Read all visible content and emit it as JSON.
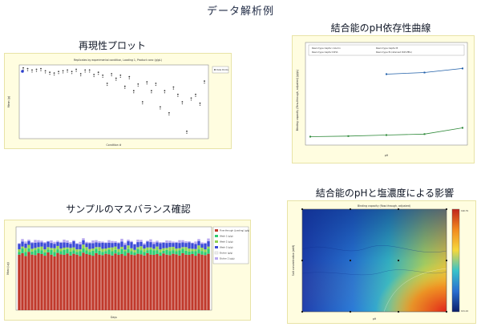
{
  "page": {
    "title": "データ解析例"
  },
  "panels": [
    {
      "title": "再現性プロット",
      "chart_title": "Replicates by experimental condition, Loading 1, Product conc (g/gL)",
      "ylabel": "Mean (g)",
      "xlabel": "Condition #",
      "legend": [
        "Data Points"
      ]
    },
    {
      "title": "結合能のpH依存性曲線",
      "ylabel": "Binding capacity (flow-through, adjusted) (g/gL)",
      "xlabel": "pH",
      "legend": [
        "Resin type Captiv column",
        "Resin type Captiv B",
        "Resin type Captiv DiHA",
        "Resin type B (retained PoE-PEG)"
      ]
    },
    {
      "title": "サンプルのマスバランス確認",
      "ylabel": "Mass (ug)",
      "xlabel": "Days",
      "legend": [
        "Flow-through (Loading) (g/g)",
        "Wash 1 (g/g)",
        "Wash 2 (g/g)",
        "Wash 3 (g/g)",
        "Elution (g/g)",
        "Elution 2 (g/g)"
      ]
    },
    {
      "title": "結合能のpHと塩濃度による影響",
      "chart_title": "Binding capacity (flow-through, adjusted)",
      "ylabel": "Salt concentration (mM)",
      "xlabel": "pH",
      "colorbar_top": "190.79",
      "colorbar_bottom": "101.24"
    }
  ],
  "chart_data": [
    {
      "type": "scatter",
      "x_label": "Condition #",
      "y_label": "Mean (g)",
      "ylim": [
        0,
        200
      ],
      "series": [
        {
          "name": "Data Points",
          "points": [
            [
              1,
              192
            ],
            [
              2,
              190
            ],
            [
              3,
              186
            ],
            [
              4,
              188
            ],
            [
              5,
              190
            ],
            [
              6,
              184
            ],
            [
              7,
              180
            ],
            [
              8,
              178
            ],
            [
              9,
              182
            ],
            [
              10,
              184
            ],
            [
              11,
              186
            ],
            [
              12,
              182
            ],
            [
              13,
              188
            ],
            [
              14,
              176
            ],
            [
              15,
              186
            ],
            [
              16,
              186
            ],
            [
              17,
              174
            ],
            [
              18,
              180
            ],
            [
              19,
              172
            ],
            [
              20,
              150
            ],
            [
              21,
              176
            ],
            [
              22,
              164
            ],
            [
              23,
              172
            ],
            [
              24,
              142
            ],
            [
              25,
              168
            ],
            [
              26,
              130
            ],
            [
              27,
              148
            ],
            [
              28,
              100
            ],
            [
              29,
              154
            ],
            [
              30,
              130
            ],
            [
              31,
              150
            ],
            [
              32,
              86
            ],
            [
              33,
              130
            ],
            [
              34,
              70
            ],
            [
              35,
              140
            ],
            [
              36,
              120
            ],
            [
              37,
              100
            ],
            [
              38,
              20
            ],
            [
              39,
              110
            ],
            [
              40,
              120
            ],
            [
              41,
              96
            ],
            [
              42,
              156
            ]
          ]
        }
      ]
    },
    {
      "type": "line",
      "x_label": "pH",
      "y_label": "Binding capacity (flow-through, adjusted) (g/gL)",
      "x": [
        4,
        5,
        6,
        7,
        8
      ],
      "series": [
        {
          "name": "upper",
          "values": [
            null,
            null,
            130,
            133,
            141
          ]
        },
        {
          "name": "lower",
          "values": [
            10,
            11,
            13,
            15,
            27
          ]
        }
      ]
    },
    {
      "type": "bar",
      "x_label": "Days",
      "y_label": "Mass (ug)",
      "ylim": [
        0,
        300
      ],
      "stack_order": [
        "Flow-through (Loading) (g/g)",
        "Wash 1 (g/g)",
        "Wash 2 (g/g)",
        "Wash 3 (g/g)",
        "Elution (g/g)",
        "Elution 2 (g/g)"
      ],
      "values_flowthrough": [
        200,
        205,
        195,
        210,
        200,
        198,
        205,
        202,
        196,
        208,
        200,
        194,
        206,
        201,
        199,
        204,
        197,
        203,
        200,
        195,
        207,
        202,
        199,
        196,
        205,
        200,
        198,
        203,
        201,
        197,
        204,
        199,
        202,
        196,
        206,
        200,
        198,
        203,
        201,
        197,
        205,
        200,
        199,
        202,
        196,
        204,
        200,
        198,
        203,
        201,
        197,
        205,
        200,
        199,
        202,
        196,
        204,
        200,
        198,
        203
      ]
    },
    {
      "type": "heatmap",
      "x_label": "pH",
      "y_label": "Salt concentration (mM)",
      "xlim": [
        5,
        9
      ],
      "ylim": [
        0,
        300
      ],
      "colorbar": [
        190.79,
        101.24
      ]
    }
  ],
  "colors": {
    "panel_bg": "#fffde0",
    "flowthrough": "#c0392b",
    "wash1": "#2ecc71",
    "wash2": "#8fd14f",
    "wash3": "#3b4ad6",
    "elution": "#f1f1f1",
    "elution2": "#b9a9f0",
    "line_upper": "#1f5fa8",
    "line_lower": "#2f8a3a"
  }
}
